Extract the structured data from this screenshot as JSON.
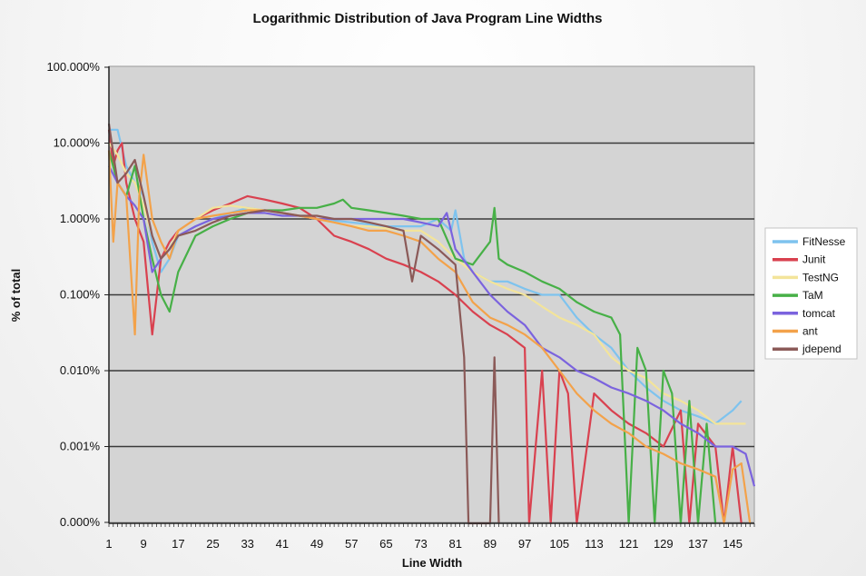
{
  "chart_data": {
    "type": "line",
    "title": "Logarithmic Distribution of Java Program Line Widths",
    "xlabel": "Line Width",
    "ylabel": "% of total",
    "y_scale": "log",
    "y_ticks": [
      "100.000%",
      "10.000%",
      "1.000%",
      "0.100%",
      "0.010%",
      "0.001%",
      "0.000%"
    ],
    "x_ticks": [
      "1",
      "9",
      "17",
      "25",
      "33",
      "41",
      "49",
      "57",
      "65",
      "73",
      "81",
      "89",
      "97",
      "105",
      "113",
      "121",
      "129",
      "137",
      "145"
    ],
    "x_range": [
      1,
      150
    ],
    "grid": "horizontal",
    "legend_position": "right",
    "colors": {
      "plot_background": "#d4d4d4",
      "grid": "#3a3a3a"
    },
    "series": [
      {
        "name": "FitNesse",
        "color": "#7ec3ee",
        "points": [
          [
            1,
            15
          ],
          [
            3,
            15
          ],
          [
            5,
            5
          ],
          [
            7,
            3
          ],
          [
            9,
            2
          ],
          [
            11,
            0.5
          ],
          [
            13,
            0.2
          ],
          [
            15,
            0.3
          ],
          [
            17,
            0.6
          ],
          [
            21,
            0.8
          ],
          [
            25,
            1.0
          ],
          [
            29,
            1.2
          ],
          [
            33,
            1.4
          ],
          [
            37,
            1.3
          ],
          [
            41,
            1.2
          ],
          [
            45,
            1.1
          ],
          [
            49,
            1.0
          ],
          [
            53,
            0.95
          ],
          [
            57,
            0.9
          ],
          [
            61,
            0.85
          ],
          [
            65,
            0.8
          ],
          [
            69,
            0.8
          ],
          [
            73,
            0.8
          ],
          [
            77,
            1.0
          ],
          [
            80,
            0.7
          ],
          [
            81,
            1.3
          ],
          [
            83,
            0.3
          ],
          [
            85,
            0.2
          ],
          [
            89,
            0.15
          ],
          [
            93,
            0.15
          ],
          [
            97,
            0.12
          ],
          [
            101,
            0.1
          ],
          [
            105,
            0.1
          ],
          [
            109,
            0.05
          ],
          [
            113,
            0.03
          ],
          [
            117,
            0.02
          ],
          [
            121,
            0.01
          ],
          [
            125,
            0.006
          ],
          [
            129,
            0.004
          ],
          [
            133,
            0.003
          ],
          [
            137,
            0.0025
          ],
          [
            141,
            0.002
          ],
          [
            145,
            0.003
          ],
          [
            147,
            0.004
          ]
        ]
      },
      {
        "name": "Junit",
        "color": "#d9414f",
        "points": [
          [
            1,
            15
          ],
          [
            2,
            5
          ],
          [
            3,
            8
          ],
          [
            4,
            10
          ],
          [
            5,
            3
          ],
          [
            7,
            1
          ],
          [
            9,
            0.5
          ],
          [
            11,
            0.03
          ],
          [
            13,
            0.3
          ],
          [
            15,
            0.5
          ],
          [
            17,
            0.7
          ],
          [
            21,
            1.0
          ],
          [
            25,
            1.3
          ],
          [
            29,
            1.6
          ],
          [
            33,
            2.0
          ],
          [
            37,
            1.8
          ],
          [
            41,
            1.6
          ],
          [
            45,
            1.4
          ],
          [
            49,
            1.0
          ],
          [
            53,
            0.6
          ],
          [
            57,
            0.5
          ],
          [
            61,
            0.4
          ],
          [
            65,
            0.3
          ],
          [
            69,
            0.25
          ],
          [
            73,
            0.2
          ],
          [
            77,
            0.15
          ],
          [
            81,
            0.1
          ],
          [
            85,
            0.06
          ],
          [
            89,
            0.04
          ],
          [
            93,
            0.03
          ],
          [
            97,
            0.02
          ],
          [
            98,
            1e-07
          ],
          [
            101,
            0.01
          ],
          [
            103,
            1e-07
          ],
          [
            105,
            0.01
          ],
          [
            107,
            0.005
          ],
          [
            109,
            1e-07
          ],
          [
            113,
            0.005
          ],
          [
            117,
            0.003
          ],
          [
            121,
            0.002
          ],
          [
            125,
            0.0015
          ],
          [
            129,
            0.001
          ],
          [
            133,
            0.003
          ],
          [
            135,
            1e-07
          ],
          [
            137,
            0.002
          ],
          [
            141,
            0.001
          ],
          [
            143,
            1e-07
          ],
          [
            145,
            0.001
          ],
          [
            147,
            1e-07
          ]
        ]
      },
      {
        "name": "TestNG",
        "color": "#f3e49a",
        "points": [
          [
            1,
            10
          ],
          [
            3,
            7
          ],
          [
            5,
            4
          ],
          [
            7,
            3
          ],
          [
            9,
            1.5
          ],
          [
            11,
            0.6
          ],
          [
            13,
            0.3
          ],
          [
            15,
            0.4
          ],
          [
            17,
            0.7
          ],
          [
            21,
            1.0
          ],
          [
            25,
            1.4
          ],
          [
            29,
            1.5
          ],
          [
            33,
            1.4
          ],
          [
            37,
            1.3
          ],
          [
            41,
            1.2
          ],
          [
            45,
            1.1
          ],
          [
            49,
            1.0
          ],
          [
            53,
            0.9
          ],
          [
            57,
            0.8
          ],
          [
            61,
            0.8
          ],
          [
            65,
            0.75
          ],
          [
            69,
            0.7
          ],
          [
            73,
            0.7
          ],
          [
            77,
            0.5
          ],
          [
            81,
            0.3
          ],
          [
            85,
            0.2
          ],
          [
            89,
            0.15
          ],
          [
            93,
            0.12
          ],
          [
            97,
            0.1
          ],
          [
            101,
            0.07
          ],
          [
            105,
            0.05
          ],
          [
            109,
            0.04
          ],
          [
            113,
            0.03
          ],
          [
            117,
            0.015
          ],
          [
            121,
            0.01
          ],
          [
            125,
            0.008
          ],
          [
            129,
            0.005
          ],
          [
            133,
            0.004
          ],
          [
            137,
            0.003
          ],
          [
            141,
            0.002
          ],
          [
            145,
            0.002
          ],
          [
            148,
            0.002
          ]
        ]
      },
      {
        "name": "TaM",
        "color": "#47b047",
        "points": [
          [
            1,
            8
          ],
          [
            3,
            3
          ],
          [
            5,
            2
          ],
          [
            7,
            5
          ],
          [
            9,
            1
          ],
          [
            11,
            0.3
          ],
          [
            13,
            0.1
          ],
          [
            15,
            0.06
          ],
          [
            17,
            0.2
          ],
          [
            21,
            0.6
          ],
          [
            25,
            0.8
          ],
          [
            29,
            1.0
          ],
          [
            33,
            1.2
          ],
          [
            37,
            1.3
          ],
          [
            41,
            1.3
          ],
          [
            45,
            1.4
          ],
          [
            49,
            1.4
          ],
          [
            53,
            1.6
          ],
          [
            55,
            1.8
          ],
          [
            57,
            1.4
          ],
          [
            61,
            1.3
          ],
          [
            65,
            1.2
          ],
          [
            69,
            1.1
          ],
          [
            73,
            1.0
          ],
          [
            77,
            1.0
          ],
          [
            81,
            0.3
          ],
          [
            85,
            0.25
          ],
          [
            89,
            0.5
          ],
          [
            90,
            1.4
          ],
          [
            91,
            0.3
          ],
          [
            93,
            0.25
          ],
          [
            97,
            0.2
          ],
          [
            101,
            0.15
          ],
          [
            105,
            0.12
          ],
          [
            109,
            0.08
          ],
          [
            113,
            0.06
          ],
          [
            117,
            0.05
          ],
          [
            119,
            0.03
          ],
          [
            121,
            1e-07
          ],
          [
            123,
            0.02
          ],
          [
            125,
            0.01
          ],
          [
            127,
            1e-07
          ],
          [
            129,
            0.01
          ],
          [
            131,
            0.005
          ],
          [
            133,
            1e-07
          ],
          [
            135,
            0.004
          ],
          [
            137,
            1e-07
          ],
          [
            139,
            0.002
          ],
          [
            141,
            1e-07
          ]
        ]
      },
      {
        "name": "tomcat",
        "color": "#7b63de",
        "points": [
          [
            1,
            5
          ],
          [
            3,
            3
          ],
          [
            5,
            2
          ],
          [
            7,
            1.5
          ],
          [
            9,
            1
          ],
          [
            11,
            0.2
          ],
          [
            13,
            0.3
          ],
          [
            15,
            0.4
          ],
          [
            17,
            0.6
          ],
          [
            21,
            0.8
          ],
          [
            25,
            1.0
          ],
          [
            29,
            1.1
          ],
          [
            33,
            1.2
          ],
          [
            37,
            1.2
          ],
          [
            41,
            1.1
          ],
          [
            45,
            1.1
          ],
          [
            49,
            1.0
          ],
          [
            53,
            1.0
          ],
          [
            57,
            1.0
          ],
          [
            61,
            1.0
          ],
          [
            65,
            1.0
          ],
          [
            69,
            1.0
          ],
          [
            73,
            0.9
          ],
          [
            77,
            0.8
          ],
          [
            79,
            1.2
          ],
          [
            81,
            0.4
          ],
          [
            85,
            0.2
          ],
          [
            89,
            0.1
          ],
          [
            93,
            0.06
          ],
          [
            97,
            0.04
          ],
          [
            101,
            0.02
          ],
          [
            105,
            0.015
          ],
          [
            109,
            0.01
          ],
          [
            113,
            0.008
          ],
          [
            117,
            0.006
          ],
          [
            121,
            0.005
          ],
          [
            125,
            0.004
          ],
          [
            129,
            0.003
          ],
          [
            133,
            0.002
          ],
          [
            137,
            0.0015
          ],
          [
            141,
            0.001
          ],
          [
            145,
            0.001
          ],
          [
            148,
            0.0008
          ],
          [
            150,
            0.0003
          ]
        ]
      },
      {
        "name": "ant",
        "color": "#f3a24a",
        "points": [
          [
            1,
            8
          ],
          [
            2,
            0.5
          ],
          [
            3,
            3
          ],
          [
            5,
            2
          ],
          [
            7,
            0.03
          ],
          [
            8,
            2
          ],
          [
            9,
            7
          ],
          [
            11,
            1
          ],
          [
            13,
            0.5
          ],
          [
            15,
            0.3
          ],
          [
            17,
            0.7
          ],
          [
            21,
            1.0
          ],
          [
            25,
            1.1
          ],
          [
            29,
            1.2
          ],
          [
            33,
            1.3
          ],
          [
            37,
            1.3
          ],
          [
            41,
            1.2
          ],
          [
            45,
            1.1
          ],
          [
            49,
            1.0
          ],
          [
            53,
            0.9
          ],
          [
            57,
            0.8
          ],
          [
            61,
            0.7
          ],
          [
            65,
            0.7
          ],
          [
            69,
            0.6
          ],
          [
            73,
            0.5
          ],
          [
            77,
            0.3
          ],
          [
            81,
            0.2
          ],
          [
            85,
            0.08
          ],
          [
            89,
            0.05
          ],
          [
            93,
            0.04
          ],
          [
            97,
            0.03
          ],
          [
            101,
            0.02
          ],
          [
            105,
            0.01
          ],
          [
            109,
            0.005
          ],
          [
            113,
            0.003
          ],
          [
            117,
            0.002
          ],
          [
            121,
            0.0015
          ],
          [
            125,
            0.001
          ],
          [
            129,
            0.0008
          ],
          [
            133,
            0.0006
          ],
          [
            137,
            0.0005
          ],
          [
            141,
            0.0004
          ],
          [
            143,
            1e-07
          ],
          [
            145,
            0.0005
          ],
          [
            147,
            0.0006
          ],
          [
            149,
            1e-07
          ]
        ]
      },
      {
        "name": "jdepend",
        "color": "#8b5a58",
        "points": [
          [
            1,
            18
          ],
          [
            3,
            3
          ],
          [
            5,
            4
          ],
          [
            7,
            6
          ],
          [
            9,
            2
          ],
          [
            11,
            0.6
          ],
          [
            13,
            0.3
          ],
          [
            15,
            0.4
          ],
          [
            17,
            0.6
          ],
          [
            21,
            0.7
          ],
          [
            25,
            0.9
          ],
          [
            29,
            1.1
          ],
          [
            33,
            1.2
          ],
          [
            37,
            1.3
          ],
          [
            41,
            1.2
          ],
          [
            45,
            1.1
          ],
          [
            49,
            1.1
          ],
          [
            53,
            1.0
          ],
          [
            57,
            1.0
          ],
          [
            61,
            0.9
          ],
          [
            65,
            0.8
          ],
          [
            69,
            0.7
          ],
          [
            71,
            0.15
          ],
          [
            73,
            0.6
          ],
          [
            77,
            0.4
          ],
          [
            81,
            0.25
          ],
          [
            83,
            0.015
          ],
          [
            84,
            1e-07
          ],
          [
            89,
            1e-07
          ],
          [
            90,
            0.015
          ],
          [
            91,
            1e-07
          ]
        ]
      }
    ]
  }
}
